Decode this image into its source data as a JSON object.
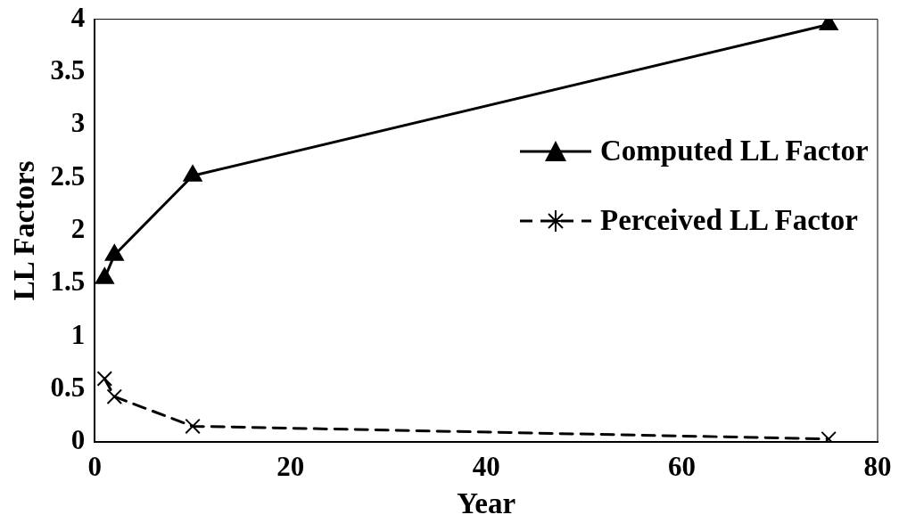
{
  "chart_data": {
    "type": "line",
    "xlabel": "Year",
    "ylabel": "LL Factors",
    "xlim": [
      0,
      80
    ],
    "xticks": [
      0,
      20,
      40,
      60,
      80
    ],
    "ylim": [
      0,
      4
    ],
    "yticks": [
      0,
      0.5,
      1,
      1.5,
      2,
      2.5,
      3,
      3.5,
      4
    ],
    "grid": false,
    "legend": "right",
    "series": [
      {
        "name": "Computed LL Factor",
        "color": "#000000",
        "x": [
          1,
          2,
          10,
          75
        ],
        "values": [
          1.55,
          1.77,
          2.52,
          3.95
        ],
        "marker": "triangle",
        "line_style": "solid"
      },
      {
        "name": "Perceived LL Factor",
        "color": "#000000",
        "x": [
          1,
          2,
          10,
          75
        ],
        "values": [
          0.6,
          0.43,
          0.15,
          0.03
        ],
        "marker": "cross",
        "line_style": "dashed"
      }
    ]
  }
}
